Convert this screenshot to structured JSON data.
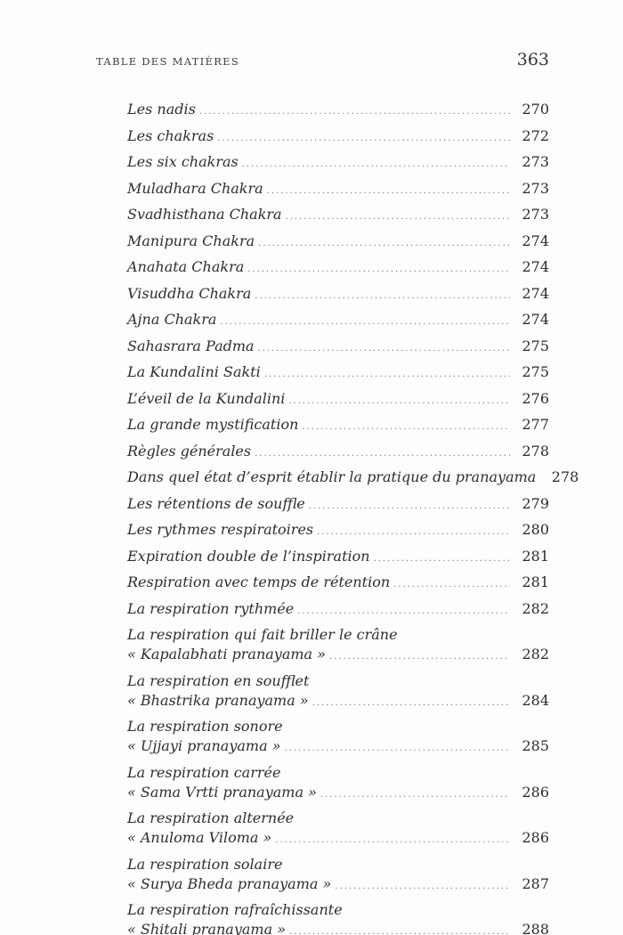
{
  "header": {
    "title": "TABLE DES MATIÈRES",
    "page_number": "363"
  },
  "colors": {
    "ink": "#2b2b2b",
    "background": "#fdfdfd",
    "leader_dots": "#6e6e6e"
  },
  "toc": {
    "entries": [
      {
        "lines": [
          "Les nadis"
        ],
        "page": "270"
      },
      {
        "lines": [
          "Les chakras"
        ],
        "page": "272"
      },
      {
        "lines": [
          "Les six chakras"
        ],
        "page": "273"
      },
      {
        "lines": [
          "Muladhara Chakra"
        ],
        "page": "273"
      },
      {
        "lines": [
          "Svadhisthana Chakra"
        ],
        "page": "273"
      },
      {
        "lines": [
          "Manipura Chakra"
        ],
        "page": "274"
      },
      {
        "lines": [
          "Anahata Chakra"
        ],
        "page": "274"
      },
      {
        "lines": [
          "Visuddha Chakra"
        ],
        "page": "274"
      },
      {
        "lines": [
          "Ajna Chakra"
        ],
        "page": "274"
      },
      {
        "lines": [
          "Sahasrara Padma"
        ],
        "page": "275"
      },
      {
        "lines": [
          "La Kundalini Sakti"
        ],
        "page": "275"
      },
      {
        "lines": [
          "L’éveil de la Kundalini"
        ],
        "page": "276"
      },
      {
        "lines": [
          "La grande mystification"
        ],
        "page": "277"
      },
      {
        "lines": [
          "Règles générales"
        ],
        "page": "278"
      },
      {
        "lines": [
          "Dans quel état d’esprit établir la pratique du pranayama"
        ],
        "page": "278"
      },
      {
        "lines": [
          "Les rétentions de souffle"
        ],
        "page": "279"
      },
      {
        "lines": [
          "Les rythmes respiratoires"
        ],
        "page": "280"
      },
      {
        "lines": [
          "Expiration double de l’inspiration"
        ],
        "page": "281"
      },
      {
        "lines": [
          "Respiration avec temps de rétention"
        ],
        "page": "281"
      },
      {
        "lines": [
          "La respiration rythmée"
        ],
        "page": "282"
      },
      {
        "lines": [
          "La respiration qui fait briller le crâne",
          "« Kapalabhati pranayama »"
        ],
        "page": "282"
      },
      {
        "lines": [
          "La respiration en soufflet",
          "« Bhastrika pranayama »"
        ],
        "page": "284"
      },
      {
        "lines": [
          "La respiration sonore",
          "« Ujjayi pranayama »"
        ],
        "page": "285"
      },
      {
        "lines": [
          "La respiration carrée",
          "« Sama Vrtti pranayama »"
        ],
        "page": "286"
      },
      {
        "lines": [
          "La respiration alternée",
          "« Anuloma Viloma »"
        ],
        "page": "286"
      },
      {
        "lines": [
          "La respiration solaire",
          "« Surya Bheda pranayama »"
        ],
        "page": "287"
      },
      {
        "lines": [
          "La respiration rafraîchissante",
          "« Shitali pranayama »"
        ],
        "page": "288"
      }
    ]
  }
}
